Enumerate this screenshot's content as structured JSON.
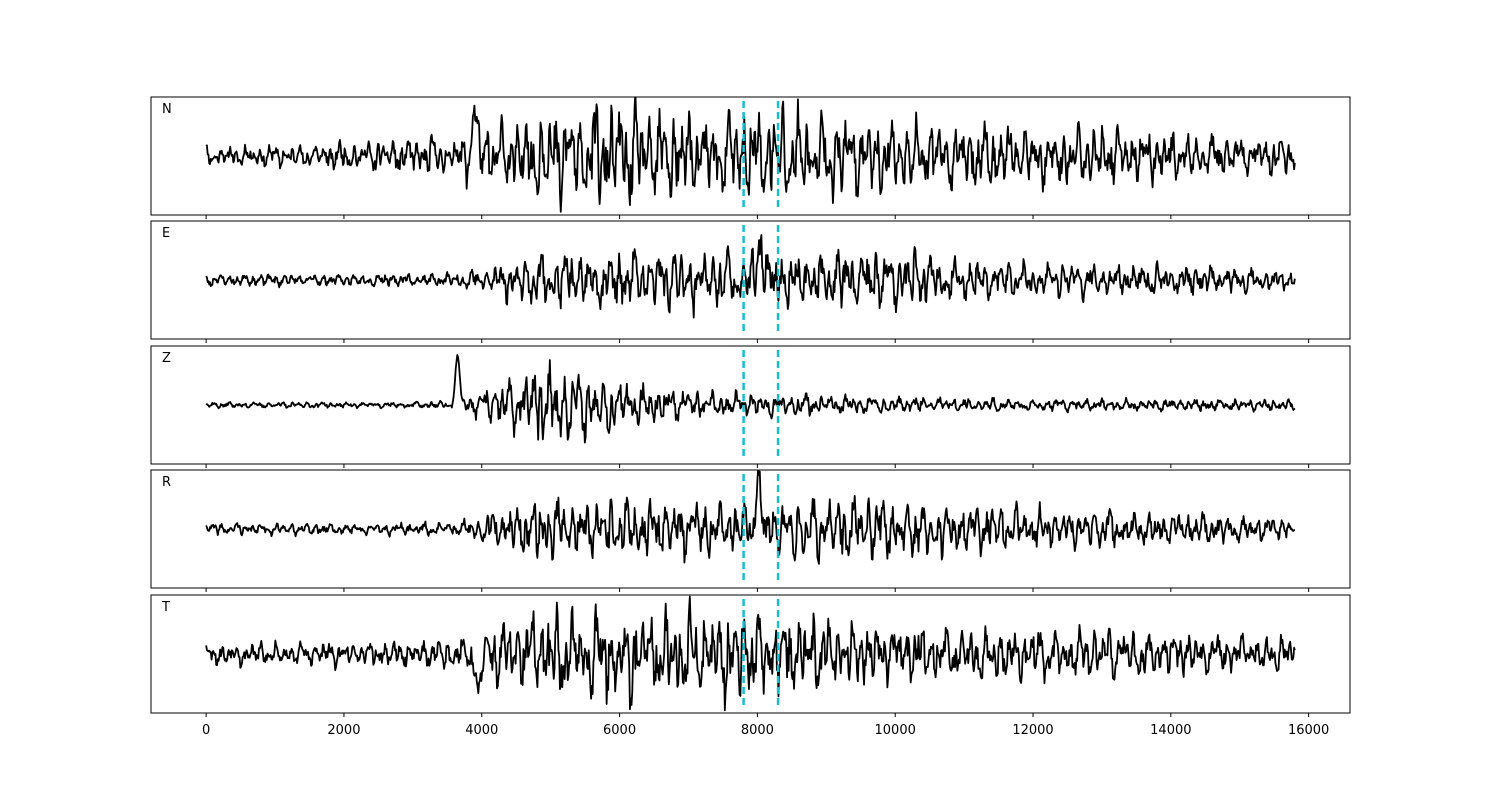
{
  "chart_data": {
    "type": "line",
    "layout": "stacked-panels",
    "panels": [
      {
        "label": "N",
        "amplitude": [
          0.15,
          0.2,
          0.25,
          0.35,
          0.8,
          0.85,
          0.75,
          0.8,
          0.6,
          0.55,
          0.5,
          0.45,
          0.35,
          0.3
        ],
        "spike": {
          "x": 3900,
          "value": 0.95
        },
        "seed": 11
      },
      {
        "label": "E",
        "amplitude": [
          0.1,
          0.1,
          0.1,
          0.12,
          0.45,
          0.5,
          0.5,
          0.45,
          0.55,
          0.4,
          0.3,
          0.28,
          0.22,
          0.18
        ],
        "spike": {
          "x": 8050,
          "value": 0.95
        },
        "seed": 23
      },
      {
        "label": "Z",
        "amplitude": [
          0.05,
          0.05,
          0.05,
          0.06,
          0.7,
          0.4,
          0.2,
          0.18,
          0.15,
          0.12,
          0.1,
          0.1,
          0.1,
          0.1
        ],
        "spike": {
          "x": 3650,
          "value": 1.0
        },
        "seed": 37
      },
      {
        "label": "R",
        "amplitude": [
          0.1,
          0.1,
          0.1,
          0.12,
          0.5,
          0.5,
          0.45,
          0.5,
          0.55,
          0.4,
          0.35,
          0.3,
          0.25,
          0.2
        ],
        "spike": {
          "x": 8000,
          "value": 0.95
        },
        "seed": 41
      },
      {
        "label": "T",
        "amplitude": [
          0.2,
          0.2,
          0.2,
          0.25,
          0.75,
          0.8,
          0.75,
          0.7,
          0.5,
          0.45,
          0.45,
          0.4,
          0.35,
          0.3
        ],
        "spike": {
          "x": 3950,
          "value": -0.95
        },
        "seed": 53
      }
    ],
    "x_start": 0,
    "x_end": 15800,
    "xlim": [
      -800,
      16600
    ],
    "ylim": [
      -1.1,
      1.1
    ],
    "xticks": [
      0,
      2000,
      4000,
      6000,
      8000,
      10000,
      12000,
      14000,
      16000
    ],
    "xtick_labels": [
      "0",
      "2000",
      "4000",
      "6000",
      "8000",
      "10000",
      "12000",
      "14000",
      "16000"
    ],
    "vlines": [
      7800,
      8300
    ],
    "colors": {
      "trace": "#000000",
      "vline": "#17becf",
      "frame": "#000000"
    },
    "grid": false,
    "y_ticks_visible": false
  }
}
